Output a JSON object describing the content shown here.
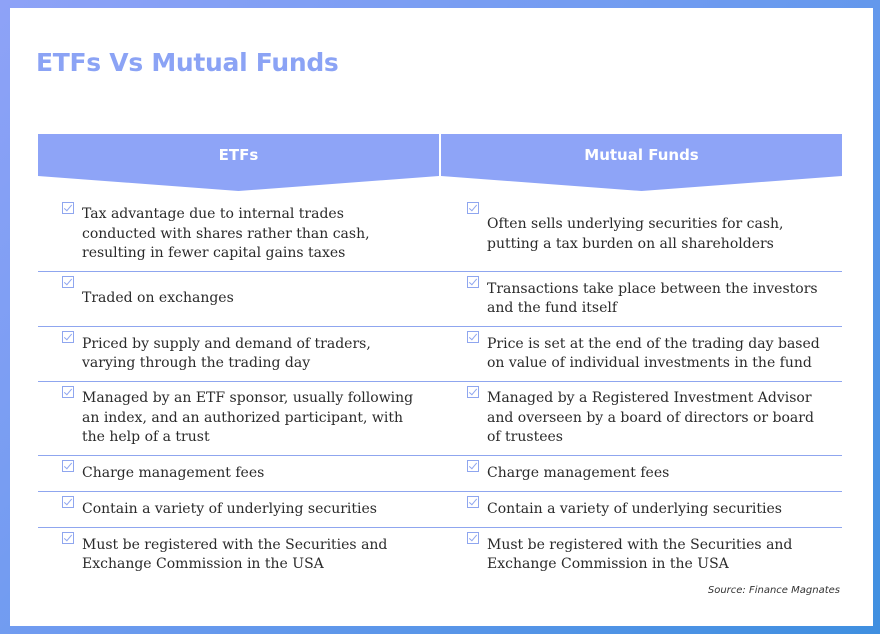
{
  "title": "ETFs Vs Mutual Funds",
  "columns": {
    "etf": "ETFs",
    "mutual_funds": "Mutual Funds"
  },
  "colors": {
    "accent": "#8ba3f5",
    "header": "#8ea4f7",
    "divider": "#8fa6ef"
  },
  "rows": [
    {
      "etf": "Tax advantage due to internal trades conducted with shares rather than cash, resulting in fewer capital gains taxes",
      "mutual_funds": "Often sells underlying securities for cash, putting a tax burden on all shareholders"
    },
    {
      "etf": "Traded on exchanges",
      "mutual_funds": "Transactions take place between the investors and the fund itself"
    },
    {
      "etf": "Priced by supply and demand of traders, varying through the trading day",
      "mutual_funds": "Price is set at the end of the trading day based on value of individual investments in the fund"
    },
    {
      "etf": "Managed by an ETF sponsor, usually following an index, and an authorized participant, with the help of a trust",
      "mutual_funds": "Managed by a Registered Investment Advisor and overseen by a board of directors or board of trustees"
    },
    {
      "etf": "Charge management fees",
      "mutual_funds": "Charge management fees"
    },
    {
      "etf": "Contain a variety of underlying securities",
      "mutual_funds": "Contain a variety of underlying securities"
    },
    {
      "etf": "Must be registered with the Securities and Exchange Commission in the USA",
      "mutual_funds": "Must be registered with the Securities and Exchange Commission in the USA"
    }
  ],
  "source": "Source: Finance Magnates"
}
